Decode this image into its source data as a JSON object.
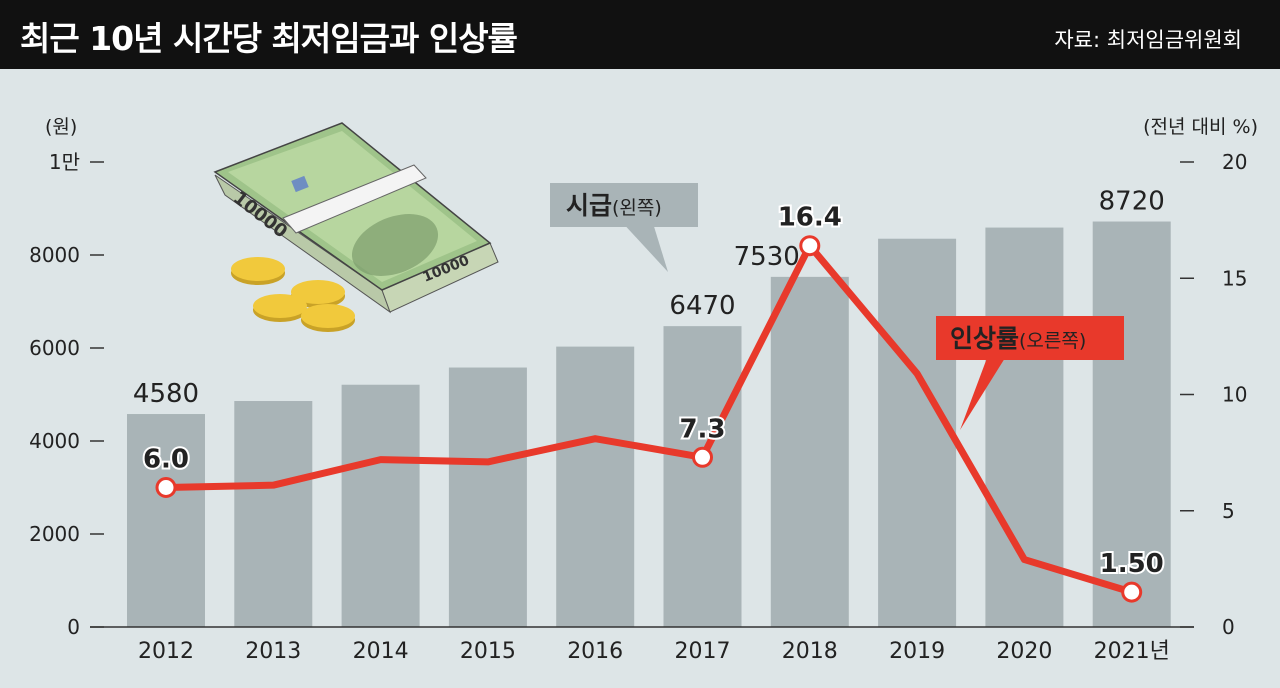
{
  "header": {
    "title": "최근 10년 시간당 최저임금과 인상률",
    "source": "자료: 최저임금위원회"
  },
  "chart_data": {
    "type": "bar+line",
    "categories": [
      "2012",
      "2013",
      "2014",
      "2015",
      "2016",
      "2017",
      "2018",
      "2019",
      "2020",
      "2021년"
    ],
    "series": [
      {
        "name": "시급",
        "name_note": "(왼쪽)",
        "type": "bar",
        "axis": "left",
        "color": "#a9b4b7",
        "values": [
          4580,
          4860,
          5210,
          5580,
          6030,
          6470,
          7530,
          8350,
          8590,
          8720
        ],
        "labels": [
          "4580",
          "",
          "",
          "",
          "",
          "6470",
          "7530",
          "",
          "",
          "8720"
        ]
      },
      {
        "name": "인상률",
        "name_note": "(오른쪽)",
        "type": "line",
        "axis": "right",
        "color": "#e8392b",
        "values": [
          6.0,
          6.1,
          7.2,
          7.1,
          8.1,
          7.3,
          16.4,
          10.9,
          2.9,
          1.5
        ],
        "labels": [
          "6.0",
          "",
          "",
          "",
          "",
          "7.3",
          "16.4",
          "",
          "",
          "1.50"
        ]
      }
    ],
    "y_left": {
      "unit": "(원)",
      "range": [
        0,
        10000
      ],
      "ticks": [
        "0",
        "2000",
        "4000",
        "6000",
        "8000",
        "1만"
      ]
    },
    "y_right": {
      "unit": "(전년 대비 %)",
      "range": [
        0,
        20
      ],
      "ticks": [
        "0",
        "5",
        "10",
        "15",
        "20"
      ]
    },
    "grid": false,
    "illustration": {
      "bill_text": "10000"
    }
  }
}
